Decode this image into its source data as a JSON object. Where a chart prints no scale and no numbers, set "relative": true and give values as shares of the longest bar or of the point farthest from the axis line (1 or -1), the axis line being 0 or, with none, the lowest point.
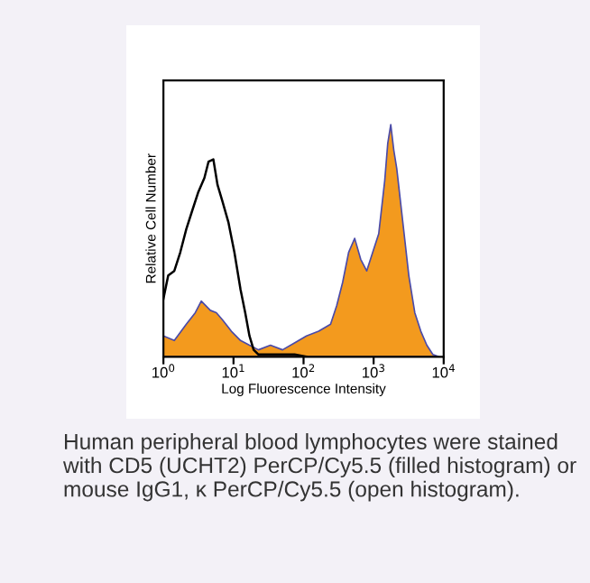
{
  "chart_data": {
    "type": "area",
    "relative": true,
    "log": "x",
    "xlabel": "Log Fluorescence Intensity",
    "ylabel": "Relative Cell Number",
    "xlim": [
      1,
      10000
    ],
    "xticks": [
      {
        "value": 1,
        "label": "10$^{0}$"
      },
      {
        "value": 10,
        "label": "10$^{1}$"
      },
      {
        "value": 100,
        "label": "10$^{2}$"
      },
      {
        "value": 1000,
        "label": "10$^{3}$"
      },
      {
        "value": 10000,
        "label": "10$^{4}$"
      }
    ],
    "tick_labels": "x",
    "grid": false,
    "legend": false,
    "annotations": [
      "Human peripheral blood lymphocytes were stained with CD5 (UCHT2) PerCP/Cy5.5 (filled histogram) or mouse IgG1, κ PerCP/Cy5.5 (open histogram)."
    ],
    "series": [
      {
        "color": "#f39a1e",
        "x": [
          1,
          1.43,
          2.12,
          2.85,
          3.47,
          4.67,
          5.69,
          6.94,
          9.33,
          12.6,
          16.9,
          22.7,
          33.7,
          50.1,
          74.3,
          110,
          164,
          243,
          297,
          361,
          440,
          537,
          654,
          797,
          971,
          1183,
          1442,
          1592,
          1757,
          1940,
          2140,
          2610,
          3180,
          3870,
          4720,
          5750,
          7000,
          8530
        ],
        "values": [
          0.09,
          0.07,
          0.14,
          0.19,
          0.24,
          0.2,
          0.19,
          0.16,
          0.11,
          0.07,
          0.05,
          0.03,
          0.05,
          0.03,
          0.06,
          0.09,
          0.11,
          0.14,
          0.22,
          0.32,
          0.45,
          0.51,
          0.42,
          0.37,
          0.45,
          0.53,
          0.76,
          0.92,
          1.0,
          0.89,
          0.81,
          0.58,
          0.35,
          0.19,
          0.11,
          0.05,
          0.01,
          0
        ]
      },
      {
        "type": "line",
        "color": "#000000",
        "x": [
          1,
          1.17,
          1.43,
          1.74,
          2.12,
          2.58,
          3.15,
          3.84,
          4.4,
          5.16,
          5.92,
          6.94,
          8.45,
          10.3,
          12.6,
          14.7,
          16.9,
          19.4,
          22.7,
          33.7,
          74.3,
          110
        ],
        "values": [
          0.25,
          0.35,
          0.37,
          0.45,
          0.55,
          0.63,
          0.71,
          0.77,
          0.84,
          0.85,
          0.74,
          0.67,
          0.58,
          0.45,
          0.29,
          0.19,
          0.09,
          0.03,
          0.01,
          0.01,
          0.01,
          0
        ]
      }
    ]
  }
}
